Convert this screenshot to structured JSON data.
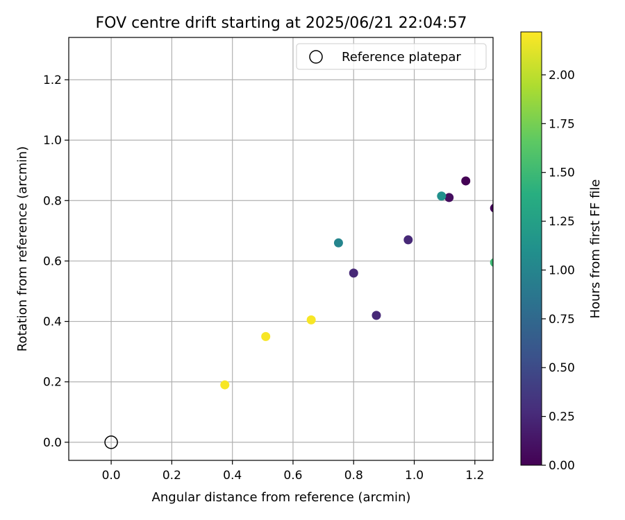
{
  "chart_data": {
    "type": "scatter",
    "title": "FOV centre drift starting at 2025/06/21 22:04:57",
    "xlabel": "Angular distance from reference (arcmin)",
    "ylabel": "Rotation from reference (arcmin)",
    "xlim": [
      -0.14,
      1.26
    ],
    "ylim": [
      -0.06,
      1.34
    ],
    "xticks": [
      0.0,
      0.2,
      0.4,
      0.6,
      0.8,
      1.0,
      1.2
    ],
    "yticks": [
      0.0,
      0.2,
      0.4,
      0.6,
      0.8,
      1.0,
      1.2
    ],
    "grid": true,
    "legend": {
      "position": "top-right",
      "entries": [
        "Reference platepar"
      ]
    },
    "reference": {
      "x": 0.0,
      "y": 0.0,
      "label": "Reference platepar",
      "marker": "open-circle"
    },
    "colorbar": {
      "label": "Hours from first FF file",
      "colormap": "viridis",
      "range": [
        0.0,
        2.22
      ],
      "ticks": [
        0.0,
        0.25,
        0.5,
        0.75,
        1.0,
        1.25,
        1.5,
        1.75,
        2.0
      ],
      "tick_labels": [
        "0.00",
        "0.25",
        "0.50",
        "0.75",
        "1.00",
        "1.25",
        "1.50",
        "1.75",
        "2.00"
      ]
    },
    "points": [
      {
        "x": 1.17,
        "y": 0.865,
        "hours": 0.0
      },
      {
        "x": 1.265,
        "y": 0.775,
        "hours": 0.04
      },
      {
        "x": 1.115,
        "y": 0.81,
        "hours": 0.08
      },
      {
        "x": 0.875,
        "y": 0.42,
        "hours": 0.25
      },
      {
        "x": 0.98,
        "y": 0.67,
        "hours": 0.25
      },
      {
        "x": 0.8,
        "y": 0.56,
        "hours": 0.25
      },
      {
        "x": 0.75,
        "y": 0.66,
        "hours": 1.0
      },
      {
        "x": 1.09,
        "y": 0.815,
        "hours": 1.1
      },
      {
        "x": 1.265,
        "y": 0.595,
        "hours": 1.5
      },
      {
        "x": 0.66,
        "y": 0.405,
        "hours": 2.2
      },
      {
        "x": 0.51,
        "y": 0.35,
        "hours": 2.2
      },
      {
        "x": 0.375,
        "y": 0.19,
        "hours": 2.2
      }
    ]
  }
}
